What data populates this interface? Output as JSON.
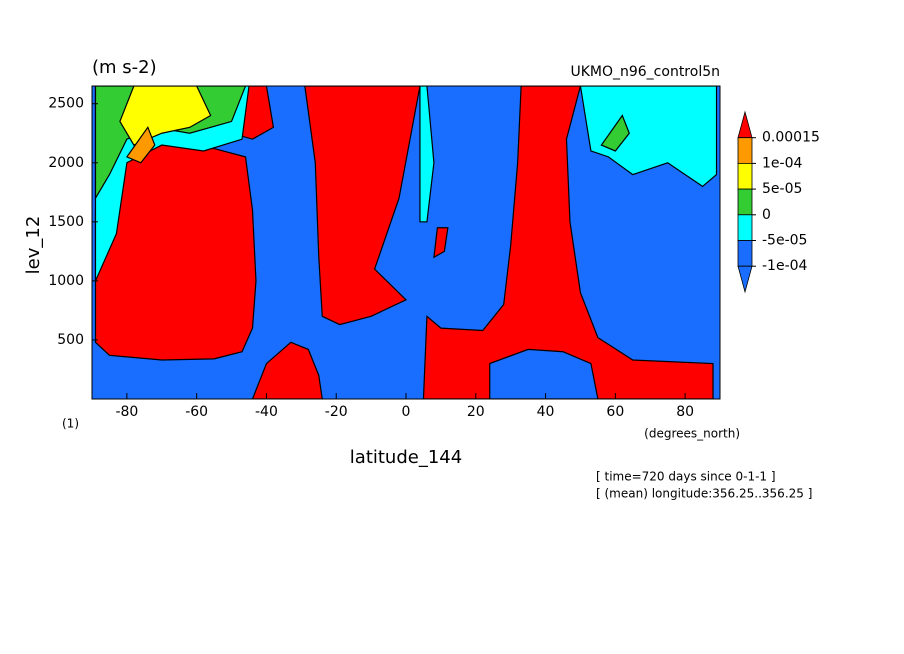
{
  "chart_data": {
    "type": "contour",
    "title": "(m s-2)",
    "subtitle": "UKMO_n96_control5n",
    "x_label": "latitude_144",
    "x_units": "(degrees_north)",
    "y_label": "lev_12",
    "y_units": "(1)",
    "annotations": [
      "[ time=720 days since 0-1-1 ]",
      "[ (mean) longitude:356.25..356.25 ]"
    ],
    "xlim": [
      -90,
      90
    ],
    "ylim": [
      0,
      2650
    ],
    "xticks": [
      -80,
      -60,
      -40,
      -20,
      0,
      20,
      40,
      60,
      80
    ],
    "yticks": [
      500,
      1000,
      1500,
      2000,
      2500
    ],
    "background": "#1a6eff",
    "colorbar": {
      "levels": [
        0.00015,
        {
          "value": 0.0001,
          "label": "1e-04"
        },
        {
          "value": 5e-05,
          "label": "5e-05"
        },
        0,
        {
          "value": -5e-05,
          "label": "-5e-05"
        },
        {
          "value": -0.0001,
          "label": "-1e-04"
        }
      ],
      "colors": [
        "#ff0000",
        "#ff9900",
        "#ffff00",
        "#33cc33",
        "#00ffff",
        "#1a6eff",
        "#1a6eff"
      ]
    },
    "regions": [
      {
        "color": "#ff0000",
        "x": [
          -89,
          -85,
          -70,
          -55,
          -47,
          -44,
          -43,
          -44,
          -46,
          -55,
          -70,
          -84,
          -89
        ],
        "y": [
          480,
          370,
          330,
          340,
          400,
          600,
          1000,
          1600,
          2050,
          2120,
          2150,
          2050,
          1600
        ]
      },
      {
        "color": "#ff0000",
        "x": [
          -56,
          -50,
          -40,
          -38,
          -44,
          -50
        ],
        "y": [
          2650,
          2650,
          2650,
          2300,
          2200,
          2250
        ]
      },
      {
        "color": "#ff0000",
        "x": [
          -44,
          -40,
          -33,
          -28,
          -25,
          -24
        ],
        "y": [
          0,
          300,
          480,
          420,
          200,
          0
        ]
      },
      {
        "color": "#ff0000",
        "x": [
          -29,
          -26,
          -25,
          -24,
          -19,
          -10,
          0,
          -9,
          -2,
          4
        ],
        "y": [
          2650,
          2000,
          1200,
          700,
          630,
          700,
          840,
          1100,
          1700,
          2650
        ]
      },
      {
        "color": "#ff0000",
        "x": [
          5,
          6,
          10,
          22,
          28,
          30,
          32,
          33,
          50,
          46,
          47,
          50,
          55,
          65,
          88,
          88
        ],
        "y": [
          0,
          700,
          600,
          580,
          800,
          1300,
          2000,
          2650,
          2650,
          2200,
          1500,
          900,
          520,
          330,
          300,
          0
        ]
      },
      {
        "color": "#1a6eff",
        "x": [
          24,
          24,
          35,
          45,
          53,
          55
        ],
        "y": [
          0,
          300,
          420,
          400,
          300,
          0
        ]
      },
      {
        "color": "#ff0000",
        "x": [
          8,
          11,
          12,
          9
        ],
        "y": [
          1200,
          1250,
          1450,
          1450
        ]
      },
      {
        "color": "#00ffff",
        "x": [
          4,
          6,
          8,
          6,
          4
        ],
        "y": [
          1500,
          1500,
          2000,
          2650,
          2650
        ]
      },
      {
        "color": "#00ffff",
        "x": [
          -89,
          -83,
          -80,
          -70,
          -58,
          -47,
          -45,
          -56,
          -89
        ],
        "y": [
          1000,
          1400,
          2000,
          2150,
          2100,
          2200,
          2650,
          2650,
          2650
        ]
      },
      {
        "color": "#33cc33",
        "x": [
          -89,
          -85,
          -80,
          -72,
          -62,
          -50,
          -46,
          -58,
          -89
        ],
        "y": [
          1700,
          1900,
          2200,
          2300,
          2250,
          2350,
          2650,
          2650,
          2650
        ]
      },
      {
        "color": "#ffff00",
        "x": [
          -82,
          -78,
          -70,
          -62,
          -56,
          -60,
          -78
        ],
        "y": [
          2350,
          2150,
          2250,
          2300,
          2400,
          2650,
          2650
        ]
      },
      {
        "color": "#ff9900",
        "x": [
          -80,
          -76,
          -72,
          -74
        ],
        "y": [
          2050,
          2000,
          2150,
          2300
        ]
      },
      {
        "color": "#00ffff",
        "x": [
          53,
          58,
          65,
          75,
          85,
          89,
          89,
          50
        ],
        "y": [
          2100,
          2050,
          1900,
          2000,
          1800,
          1900,
          2650,
          2650
        ]
      },
      {
        "color": "#33cc33",
        "x": [
          56,
          60,
          64,
          62
        ],
        "y": [
          2150,
          2100,
          2250,
          2400
        ]
      }
    ]
  }
}
